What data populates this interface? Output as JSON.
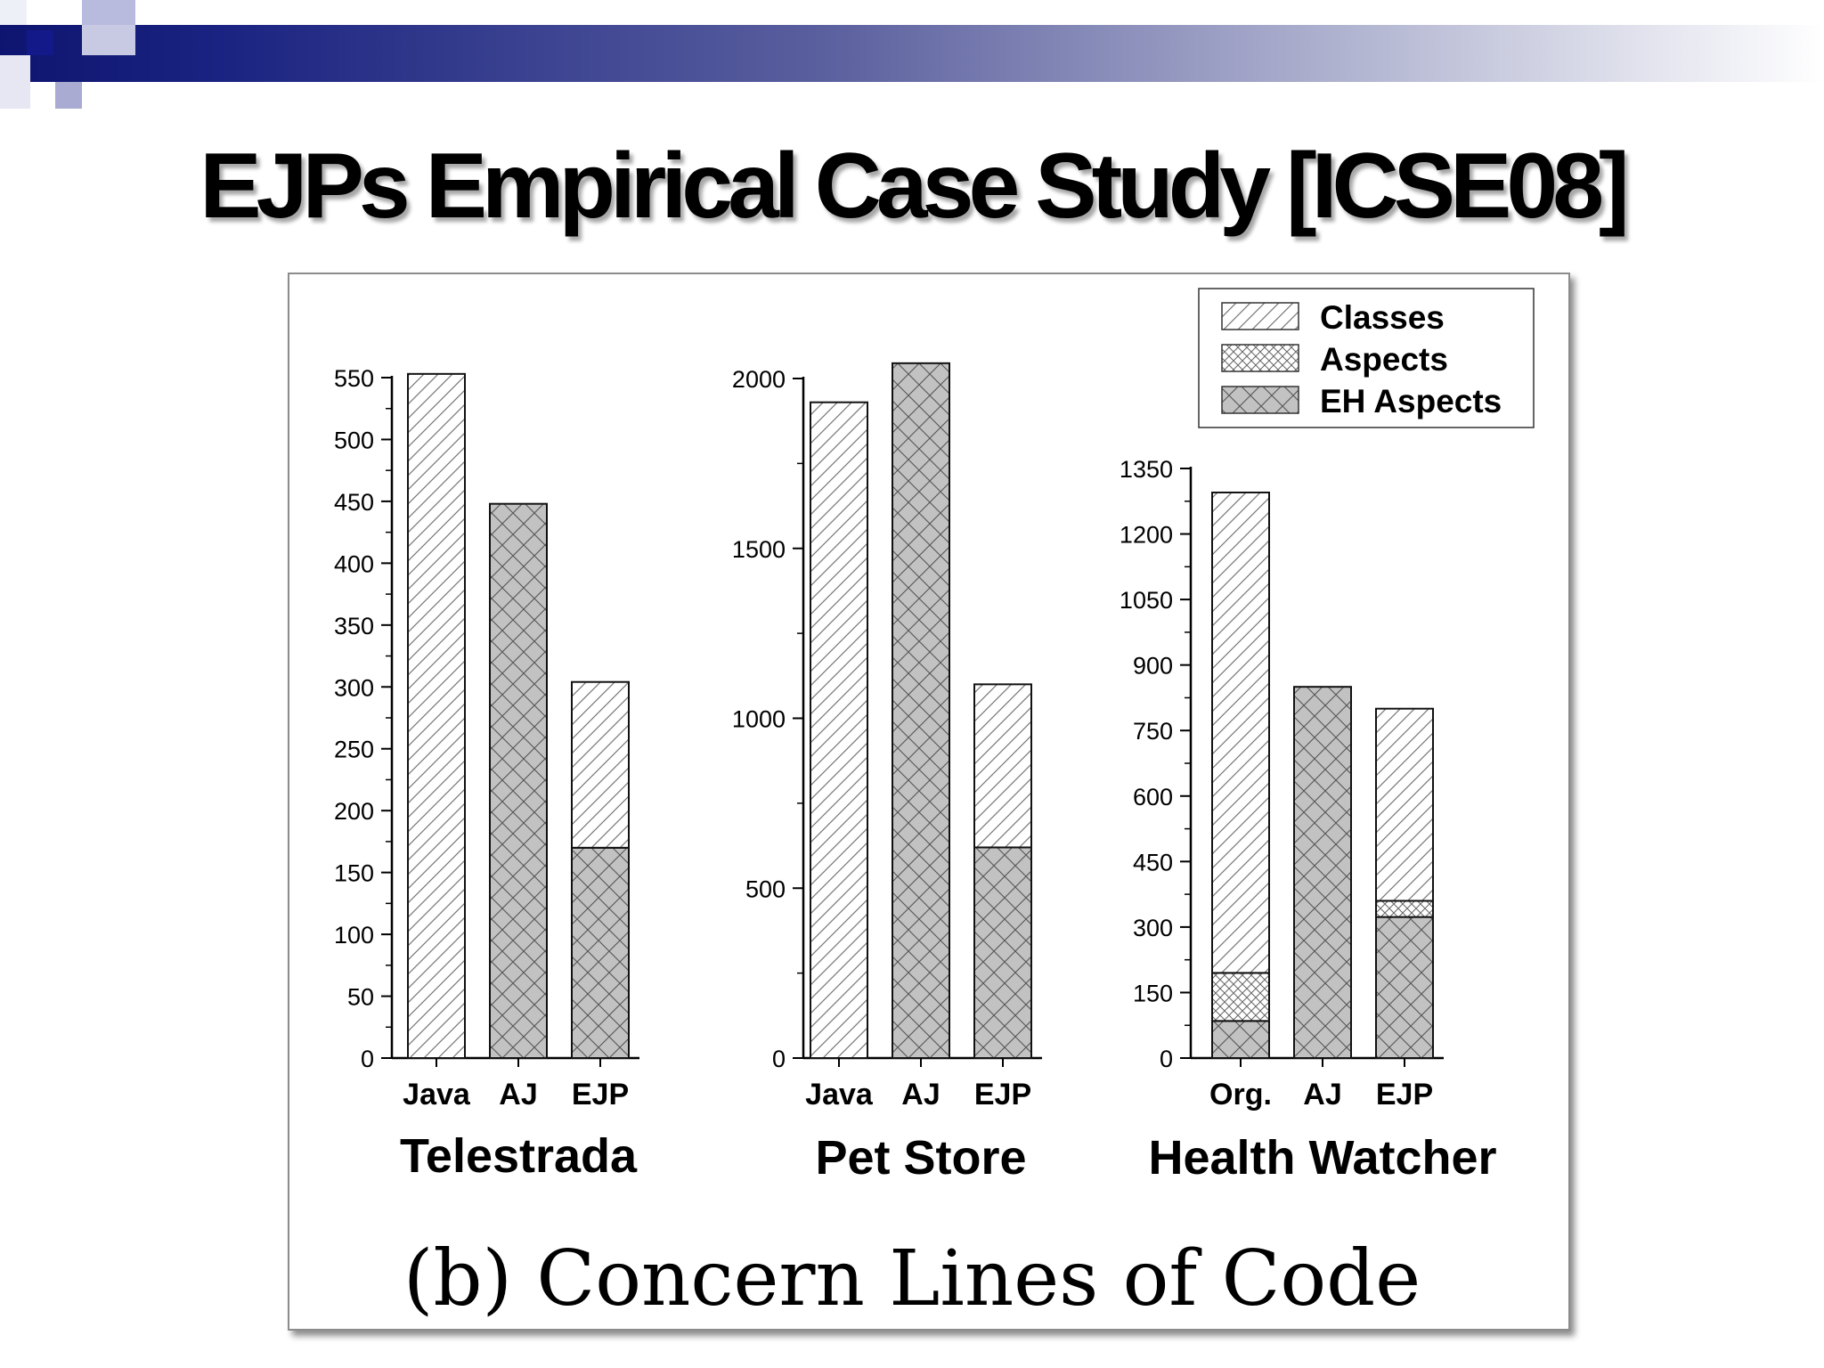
{
  "slide": {
    "title": "EJPs Empirical Case Study [ICSE08]",
    "caption": "(b) Concern Lines of Code"
  },
  "colors": {
    "header_dark": "#0e1570",
    "header_light": "#ffffff",
    "logo_navy": "#14198a",
    "logo_lavender": "#b9bbde",
    "bar_fill_dark": "#c2c2c2",
    "bar_fill_light": "#ffffff",
    "hatch_stroke": "#555555"
  },
  "chart_data": {
    "type": "bar",
    "stacked": true,
    "legend": {
      "position": "top-right",
      "entries": [
        {
          "key": "classes",
          "label": "Classes",
          "pattern": "diagonal-hatch-light"
        },
        {
          "key": "aspects",
          "label": "Aspects",
          "pattern": "cross-hatch-light"
        },
        {
          "key": "eh_aspects",
          "label": "EH Aspects",
          "pattern": "cross-hatch-gray"
        }
      ]
    },
    "panels": [
      {
        "name": "Telestrada",
        "categories": [
          "Java",
          "AJ",
          "EJP"
        ],
        "ylim": [
          0,
          550
        ],
        "yticks": [
          0,
          50,
          100,
          150,
          200,
          250,
          300,
          350,
          400,
          450,
          500,
          550
        ],
        "series": [
          {
            "key": "eh_aspects",
            "values": [
              0,
              448,
              170
            ]
          },
          {
            "key": "aspects",
            "values": [
              0,
              0,
              0
            ]
          },
          {
            "key": "classes",
            "values": [
              553,
              0,
              134
            ]
          }
        ]
      },
      {
        "name": "Pet Store",
        "categories": [
          "Java",
          "AJ",
          "EJP"
        ],
        "ylim": [
          0,
          2000
        ],
        "yticks": [
          0,
          500,
          1000,
          1500,
          2000
        ],
        "series": [
          {
            "key": "eh_aspects",
            "values": [
              0,
              2045,
              620
            ]
          },
          {
            "key": "aspects",
            "values": [
              0,
              0,
              0
            ]
          },
          {
            "key": "classes",
            "values": [
              1930,
              0,
              480
            ]
          }
        ]
      },
      {
        "name": "Health Watcher",
        "categories": [
          "Org.",
          "AJ",
          "EJP"
        ],
        "ylim": [
          0,
          1350
        ],
        "yticks": [
          0,
          150,
          300,
          450,
          600,
          750,
          900,
          1050,
          1200,
          1350
        ],
        "series": [
          {
            "key": "eh_aspects",
            "values": [
              85,
              850,
              323
            ]
          },
          {
            "key": "aspects",
            "values": [
              110,
              0,
              37
            ]
          },
          {
            "key": "classes",
            "values": [
              1100,
              0,
              440
            ]
          }
        ]
      }
    ]
  }
}
